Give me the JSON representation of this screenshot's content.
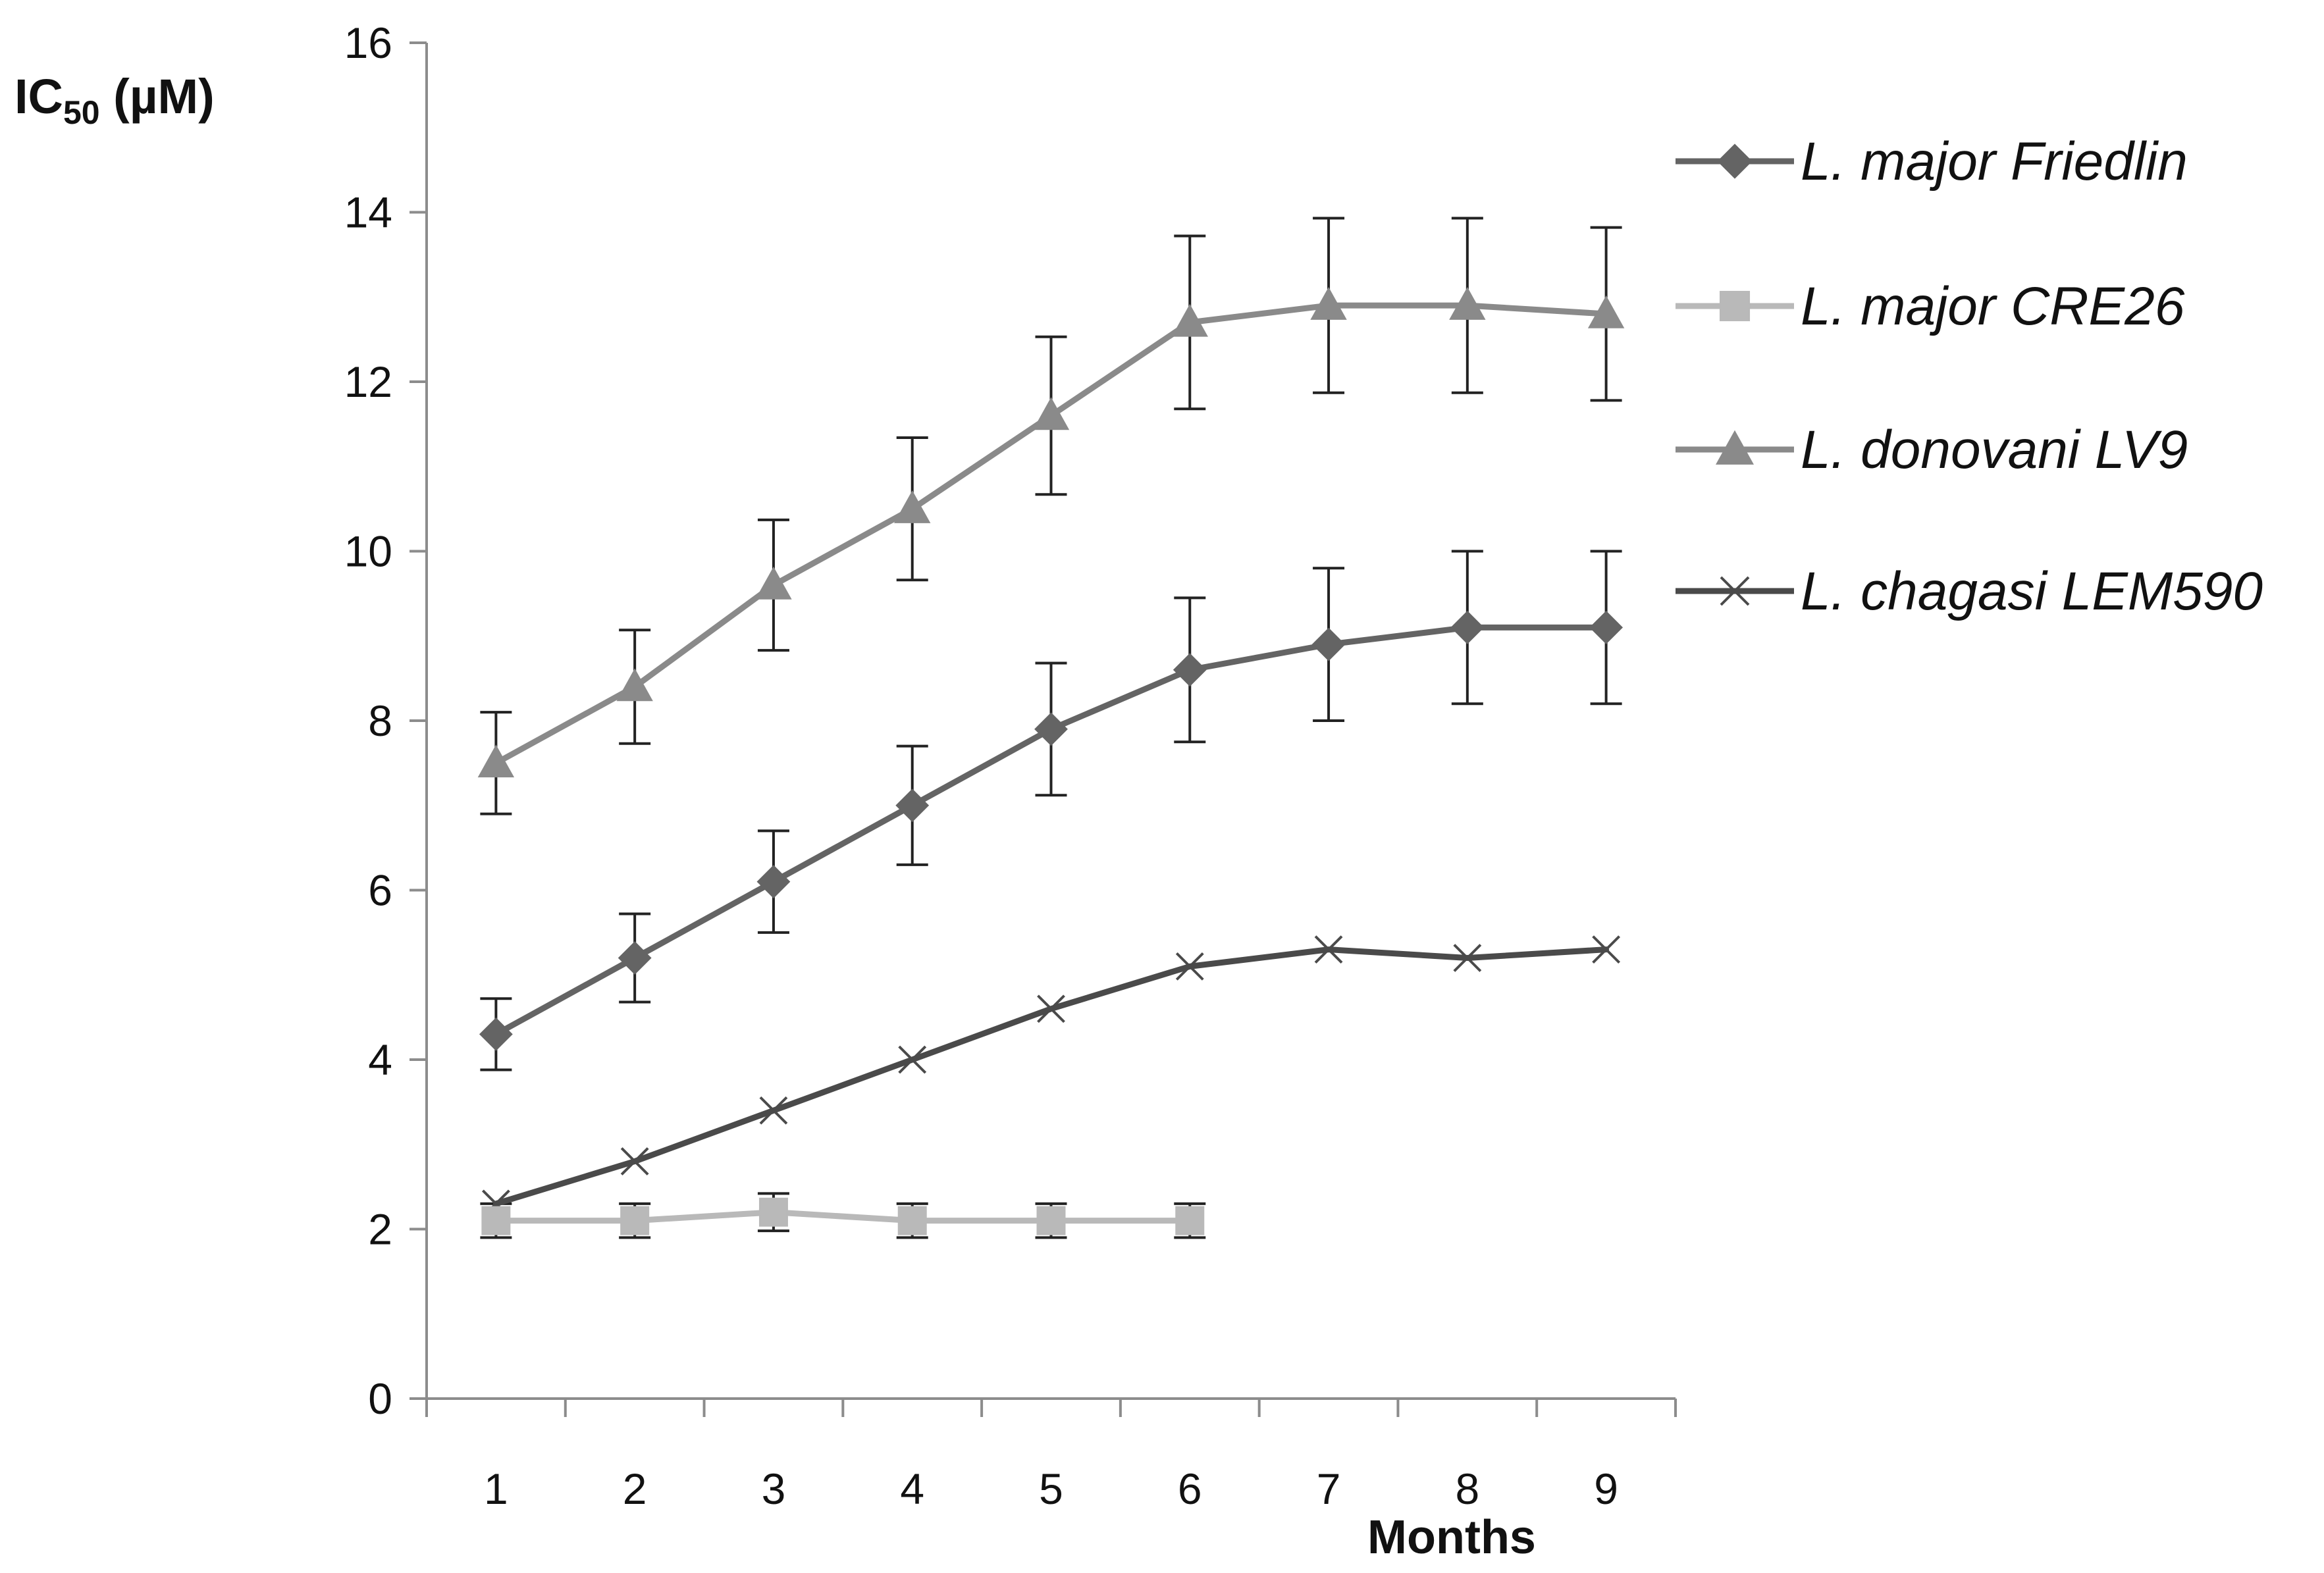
{
  "chart_data": {
    "type": "line",
    "title": "",
    "xlabel": "Months",
    "ylabel": {
      "main": "IC",
      "sub": "50",
      "unit": " (µM)"
    },
    "categories": [
      "1",
      "2",
      "3",
      "4",
      "5",
      "6",
      "7",
      "8",
      "9"
    ],
    "x": [
      1,
      2,
      3,
      4,
      5,
      6,
      7,
      8,
      9
    ],
    "ylim": [
      0,
      16
    ],
    "yticks": [
      "0",
      "2",
      "4",
      "6",
      "8",
      "10",
      "12",
      "14",
      "16"
    ],
    "grid": false,
    "legend_position": "right",
    "series": [
      {
        "name": "L. major Friedlin",
        "color": "#646464",
        "marker": "diamond",
        "x": [
          1,
          2,
          3,
          4,
          5,
          6,
          7,
          8,
          9
        ],
        "values": [
          4.3,
          5.2,
          6.1,
          7.0,
          7.9,
          8.6,
          8.9,
          9.1,
          9.1
        ],
        "errors": [
          0.42,
          0.52,
          0.6,
          0.7,
          0.78,
          0.85,
          0.9,
          0.9,
          0.9
        ]
      },
      {
        "name": "L. major CRE26",
        "color": "#b9b9b9",
        "marker": "square",
        "x": [
          1,
          2,
          3,
          4,
          5,
          6
        ],
        "values": [
          2.1,
          2.1,
          2.2,
          2.1,
          2.1,
          2.1
        ],
        "errors": [
          0.2,
          0.2,
          0.22,
          0.2,
          0.2,
          0.2
        ]
      },
      {
        "name": "L. donovani LV9",
        "color": "#8a8a8a",
        "marker": "triangle",
        "x": [
          1,
          2,
          3,
          4,
          5,
          6,
          7,
          8,
          9
        ],
        "values": [
          7.5,
          8.4,
          9.6,
          10.5,
          11.6,
          12.7,
          12.9,
          12.9,
          12.8
        ],
        "errors": [
          0.6,
          0.67,
          0.77,
          0.84,
          0.93,
          1.02,
          1.03,
          1.03,
          1.02
        ]
      },
      {
        "name": "L. chagasi LEM590",
        "color": "#4a4a4a",
        "marker": "x",
        "x": [
          1,
          2,
          3,
          4,
          5,
          6,
          7,
          8,
          9
        ],
        "values": [
          2.3,
          2.8,
          3.4,
          4.0,
          4.6,
          5.1,
          5.3,
          5.2,
          5.3
        ],
        "errors": null
      }
    ]
  }
}
